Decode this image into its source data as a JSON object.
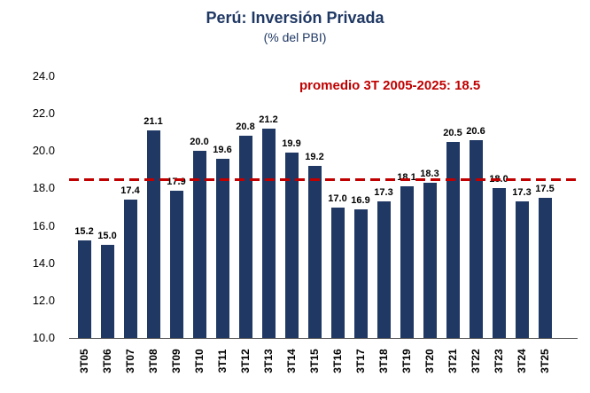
{
  "chart_data": {
    "type": "bar",
    "title": "Perú: Inversión Privada",
    "subtitle": "(% del PBI)",
    "annotation": "promedio 3T 2005-2025: 18.5",
    "average_value": 18.5,
    "categories": [
      "3T05",
      "3T06",
      "3T07",
      "3T08",
      "3T09",
      "3T10",
      "3T11",
      "3T12",
      "3T13",
      "3T14",
      "3T15",
      "3T16",
      "3T17",
      "3T18",
      "3T19",
      "3T20",
      "3T21",
      "3T22",
      "3T23",
      "3T24",
      "3T25"
    ],
    "values": [
      15.2,
      15.0,
      17.4,
      21.1,
      17.9,
      20.0,
      19.6,
      20.8,
      21.2,
      19.9,
      19.2,
      17.0,
      16.9,
      17.3,
      18.1,
      18.3,
      20.5,
      20.6,
      18.0,
      17.3,
      17.5
    ],
    "ylim": [
      10.0,
      24.0
    ],
    "ytick_step": 2.0,
    "yticks": [
      "24.0",
      "22.0",
      "20.0",
      "18.0",
      "16.0",
      "14.0",
      "12.0",
      "10.0"
    ],
    "grid": false,
    "legend": "none",
    "colors": {
      "bar": "#1F3864",
      "title": "#1F3864",
      "subtitle": "#1F3864",
      "average_line": "#C00000",
      "annotation": "#C00000",
      "value_label": "#000000",
      "axis": "#595959"
    }
  }
}
